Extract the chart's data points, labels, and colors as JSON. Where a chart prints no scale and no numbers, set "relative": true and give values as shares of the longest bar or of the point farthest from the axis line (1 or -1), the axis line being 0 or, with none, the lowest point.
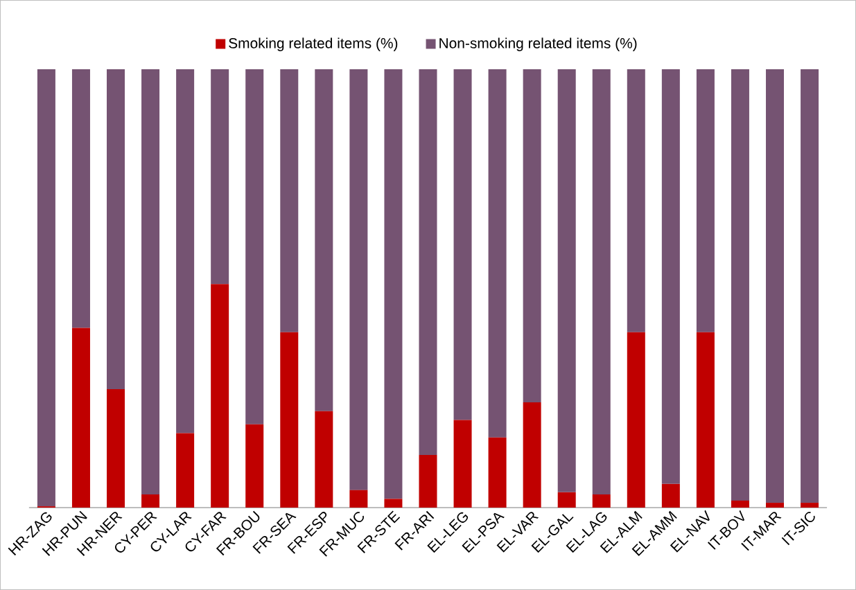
{
  "chart_data": {
    "type": "bar",
    "stacked": true,
    "relative": true,
    "legend": "top",
    "categories": [
      "HR-ZAG",
      "HR-PUN",
      "HR-NER",
      "CY-PER",
      "CY-LAR",
      "CY-FAR",
      "FR-BOU",
      "FR-SEA",
      "FR-ESP",
      "FR-MUC",
      "FR-STE",
      "FR-ARI",
      "EL-LEG",
      "EL-PSA",
      "EL-VAR",
      "EL-GAL",
      "EL-LAG",
      "EL-ALM",
      "EL-AMM",
      "EL-NAV",
      "IT-BOV",
      "IT-MAR",
      "IT-SIC"
    ],
    "series": [
      {
        "name": "Smoking related items (%)",
        "color": "#c00000",
        "values": [
          0.003,
          0.41,
          0.27,
          0.03,
          0.17,
          0.51,
          0.19,
          0.4,
          0.22,
          0.04,
          0.02,
          0.12,
          0.2,
          0.16,
          0.24,
          0.035,
          0.03,
          0.4,
          0.054,
          0.4,
          0.016,
          0.011,
          0.011
        ]
      },
      {
        "name": "Non-smoking related items (%)",
        "color": "#755372",
        "values": [
          0.997,
          0.59,
          0.73,
          0.97,
          0.83,
          0.49,
          0.81,
          0.6,
          0.78,
          0.96,
          0.98,
          0.88,
          0.8,
          0.84,
          0.76,
          0.965,
          0.97,
          0.6,
          0.946,
          0.6,
          0.984,
          0.989,
          0.989
        ]
      }
    ]
  }
}
